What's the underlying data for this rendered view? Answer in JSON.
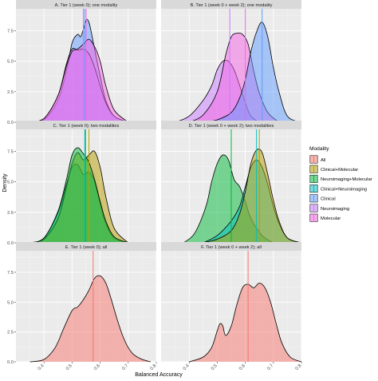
{
  "figure": {
    "xlabel": "Balanced Accuracy",
    "ylabel": "Density",
    "legend_title": "Modality",
    "legend_position": "right"
  },
  "modalities": [
    {
      "name": "All",
      "color": "#F8766D"
    },
    {
      "name": "Clinical+Molecular",
      "color": "#B79F00"
    },
    {
      "name": "Neuroimaging+Molecular",
      "color": "#00BA38"
    },
    {
      "name": "Clinical+Neuroimaging",
      "color": "#00BFC4"
    },
    {
      "name": "Clinical",
      "color": "#619CFF"
    },
    {
      "name": "Neuroimaging",
      "color": "#C77CFF"
    },
    {
      "name": "Molecular",
      "color": "#F564E3"
    }
  ],
  "chart_data": [
    {
      "type": "area",
      "panel": "A",
      "title": "A. Tier 1 (week 0); one modality",
      "xlim": [
        0.3,
        0.8
      ],
      "ylim": [
        0,
        9.3
      ],
      "x_ticks": [],
      "y_ticks": [
        0.0,
        2.5,
        5.0,
        7.5
      ],
      "series": [
        {
          "name": "Clinical",
          "mean": 0.545,
          "x": [
            0.35,
            0.4,
            0.45,
            0.48,
            0.5,
            0.52,
            0.53,
            0.54,
            0.55,
            0.56,
            0.57,
            0.58,
            0.6,
            0.62,
            0.65,
            0.7
          ],
          "y": [
            0,
            0.2,
            1.8,
            4.2,
            6.5,
            7.2,
            7.0,
            7.6,
            8.4,
            8.2,
            7.2,
            6.0,
            3.8,
            1.8,
            0.5,
            0
          ]
        },
        {
          "name": "Neuroimaging",
          "mean": 0.54,
          "x": [
            0.35,
            0.4,
            0.45,
            0.48,
            0.5,
            0.52,
            0.54,
            0.56,
            0.58,
            0.6,
            0.62,
            0.65,
            0.7
          ],
          "y": [
            0,
            0.3,
            2.2,
            4.8,
            6.0,
            5.9,
            6.0,
            5.6,
            4.5,
            3.0,
            1.6,
            0.5,
            0
          ]
        },
        {
          "name": "Molecular",
          "mean": 0.55,
          "x": [
            0.35,
            0.4,
            0.45,
            0.48,
            0.5,
            0.52,
            0.54,
            0.56,
            0.58,
            0.6,
            0.62,
            0.65,
            0.7
          ],
          "y": [
            0,
            0.3,
            2.2,
            4.6,
            5.8,
            6.0,
            6.4,
            6.8,
            6.2,
            5.0,
            3.0,
            1.0,
            0
          ]
        }
      ]
    },
    {
      "type": "area",
      "panel": "B",
      "title": "B. Tier 1 (week 0 + week 2); one modality",
      "xlim": [
        0.3,
        0.8
      ],
      "ylim": [
        0,
        9.3
      ],
      "x_ticks": [],
      "y_ticks": [],
      "series": [
        {
          "name": "Neuroimaging",
          "mean": 0.545,
          "x": [
            0.35,
            0.4,
            0.45,
            0.48,
            0.5,
            0.52,
            0.54,
            0.56,
            0.58,
            0.6,
            0.62,
            0.65
          ],
          "y": [
            0,
            0.5,
            1.8,
            3.0,
            4.3,
            5.0,
            5.0,
            4.3,
            3.0,
            1.6,
            0.5,
            0
          ]
        },
        {
          "name": "Molecular",
          "mean": 0.6,
          "x": [
            0.4,
            0.45,
            0.5,
            0.53,
            0.55,
            0.57,
            0.59,
            0.61,
            0.63,
            0.65,
            0.68,
            0.72
          ],
          "y": [
            0,
            0.6,
            2.5,
            5.5,
            7.0,
            7.3,
            7.2,
            6.4,
            4.2,
            2.4,
            0.8,
            0
          ]
        },
        {
          "name": "Clinical",
          "mean": 0.66,
          "x": [
            0.45,
            0.5,
            0.55,
            0.58,
            0.6,
            0.62,
            0.64,
            0.66,
            0.68,
            0.7,
            0.72,
            0.75,
            0.8
          ],
          "y": [
            0,
            0.2,
            0.8,
            2.0,
            3.5,
            5.8,
            7.4,
            8.2,
            7.0,
            4.5,
            2.5,
            0.5,
            0
          ]
        }
      ]
    },
    {
      "type": "area",
      "panel": "C",
      "title": "C. Tier 1 (week 0); two modalities",
      "xlim": [
        0.3,
        0.8
      ],
      "ylim": [
        0,
        9.3
      ],
      "x_ticks": [],
      "y_ticks": [
        0.0,
        2.5,
        5.0,
        7.5
      ],
      "series": [
        {
          "name": "Clinical+Neuroimaging",
          "mean": 0.545,
          "x": [
            0.35,
            0.4,
            0.45,
            0.48,
            0.5,
            0.52,
            0.54,
            0.56,
            0.58,
            0.6,
            0.62,
            0.65,
            0.7
          ],
          "y": [
            0,
            0.4,
            2.5,
            4.8,
            6.2,
            6.4,
            5.6,
            5.8,
            5.0,
            3.2,
            1.6,
            0.4,
            0
          ]
        },
        {
          "name": "Clinical+Molecular",
          "mean": 0.56,
          "x": [
            0.35,
            0.4,
            0.45,
            0.48,
            0.5,
            0.52,
            0.54,
            0.56,
            0.58,
            0.6,
            0.62,
            0.65,
            0.7
          ],
          "y": [
            0,
            0.3,
            2.0,
            4.6,
            6.5,
            7.4,
            6.8,
            7.2,
            7.5,
            6.2,
            3.8,
            1.2,
            0
          ]
        },
        {
          "name": "Neuroimaging+Molecular",
          "mean": 0.548,
          "x": [
            0.35,
            0.4,
            0.45,
            0.48,
            0.5,
            0.52,
            0.54,
            0.56,
            0.58,
            0.6,
            0.62,
            0.65,
            0.7
          ],
          "y": [
            0,
            0.4,
            2.6,
            5.2,
            7.2,
            7.8,
            7.3,
            6.6,
            5.2,
            3.4,
            1.8,
            0.5,
            0
          ]
        }
      ]
    },
    {
      "type": "area",
      "panel": "D",
      "title": "D. Tier 1 (week 0 + week 2); two modalities",
      "xlim": [
        0.3,
        0.8
      ],
      "ylim": [
        0,
        9.3
      ],
      "x_ticks": [],
      "y_ticks": [],
      "series": [
        {
          "name": "Neuroimaging+Molecular",
          "mean": 0.55,
          "x": [
            0.38,
            0.42,
            0.46,
            0.48,
            0.5,
            0.52,
            0.54,
            0.56,
            0.58,
            0.6,
            0.62,
            0.66,
            0.7
          ],
          "y": [
            0,
            0.8,
            3.0,
            5.0,
            6.5,
            7.2,
            6.8,
            5.2,
            4.6,
            3.4,
            2.0,
            0.6,
            0
          ]
        },
        {
          "name": "Clinical+Neuroimaging",
          "mean": 0.64,
          "x": [
            0.45,
            0.5,
            0.55,
            0.58,
            0.6,
            0.62,
            0.64,
            0.66,
            0.68,
            0.7,
            0.72,
            0.75,
            0.8
          ],
          "y": [
            0,
            0.6,
            1.8,
            3.0,
            4.6,
            6.2,
            6.8,
            6.2,
            4.8,
            3.0,
            1.6,
            0.4,
            0
          ]
        },
        {
          "name": "Clinical+Molecular",
          "mean": 0.65,
          "x": [
            0.45,
            0.5,
            0.55,
            0.58,
            0.6,
            0.62,
            0.64,
            0.66,
            0.68,
            0.7,
            0.72,
            0.75,
            0.8
          ],
          "y": [
            0,
            0.3,
            1.0,
            2.4,
            4.2,
            6.5,
            7.6,
            7.4,
            5.6,
            3.5,
            1.8,
            0.4,
            0
          ]
        }
      ]
    },
    {
      "type": "area",
      "panel": "E",
      "title": "E. Tier 1 (week 0); all",
      "xlim": [
        0.3,
        0.8
      ],
      "ylim": [
        0,
        9.3
      ],
      "x_ticks": [
        0.4,
        0.5,
        0.6,
        0.7,
        0.8
      ],
      "y_ticks": [
        0.0,
        2.5,
        5.0,
        7.5
      ],
      "series": [
        {
          "name": "All",
          "mean": 0.575,
          "x": [
            0.35,
            0.4,
            0.44,
            0.47,
            0.5,
            0.52,
            0.54,
            0.56,
            0.58,
            0.6,
            0.62,
            0.64,
            0.66,
            0.68,
            0.7,
            0.72,
            0.75,
            0.78
          ],
          "y": [
            0,
            0.2,
            1.2,
            2.8,
            4.3,
            4.6,
            5.2,
            6.0,
            7.0,
            7.2,
            6.6,
            5.2,
            3.6,
            2.2,
            1.2,
            0.6,
            0.2,
            0
          ]
        }
      ]
    },
    {
      "type": "area",
      "panel": "F",
      "title": "F. Tier 1 (week 0 + week 2); all",
      "xlim": [
        0.3,
        0.8
      ],
      "ylim": [
        0,
        9.3
      ],
      "x_ticks": [
        0.4,
        0.5,
        0.6,
        0.7,
        0.8
      ],
      "y_ticks": [],
      "series": [
        {
          "name": "All",
          "mean": 0.61,
          "x": [
            0.4,
            0.45,
            0.48,
            0.5,
            0.51,
            0.52,
            0.53,
            0.55,
            0.57,
            0.59,
            0.61,
            0.63,
            0.65,
            0.67,
            0.69,
            0.71,
            0.73,
            0.76,
            0.8
          ],
          "y": [
            0,
            0.4,
            1.2,
            2.6,
            3.2,
            3.0,
            2.2,
            3.0,
            4.8,
            6.2,
            6.5,
            6.2,
            6.6,
            6.2,
            5.0,
            3.2,
            1.6,
            0.4,
            0
          ]
        }
      ]
    }
  ]
}
